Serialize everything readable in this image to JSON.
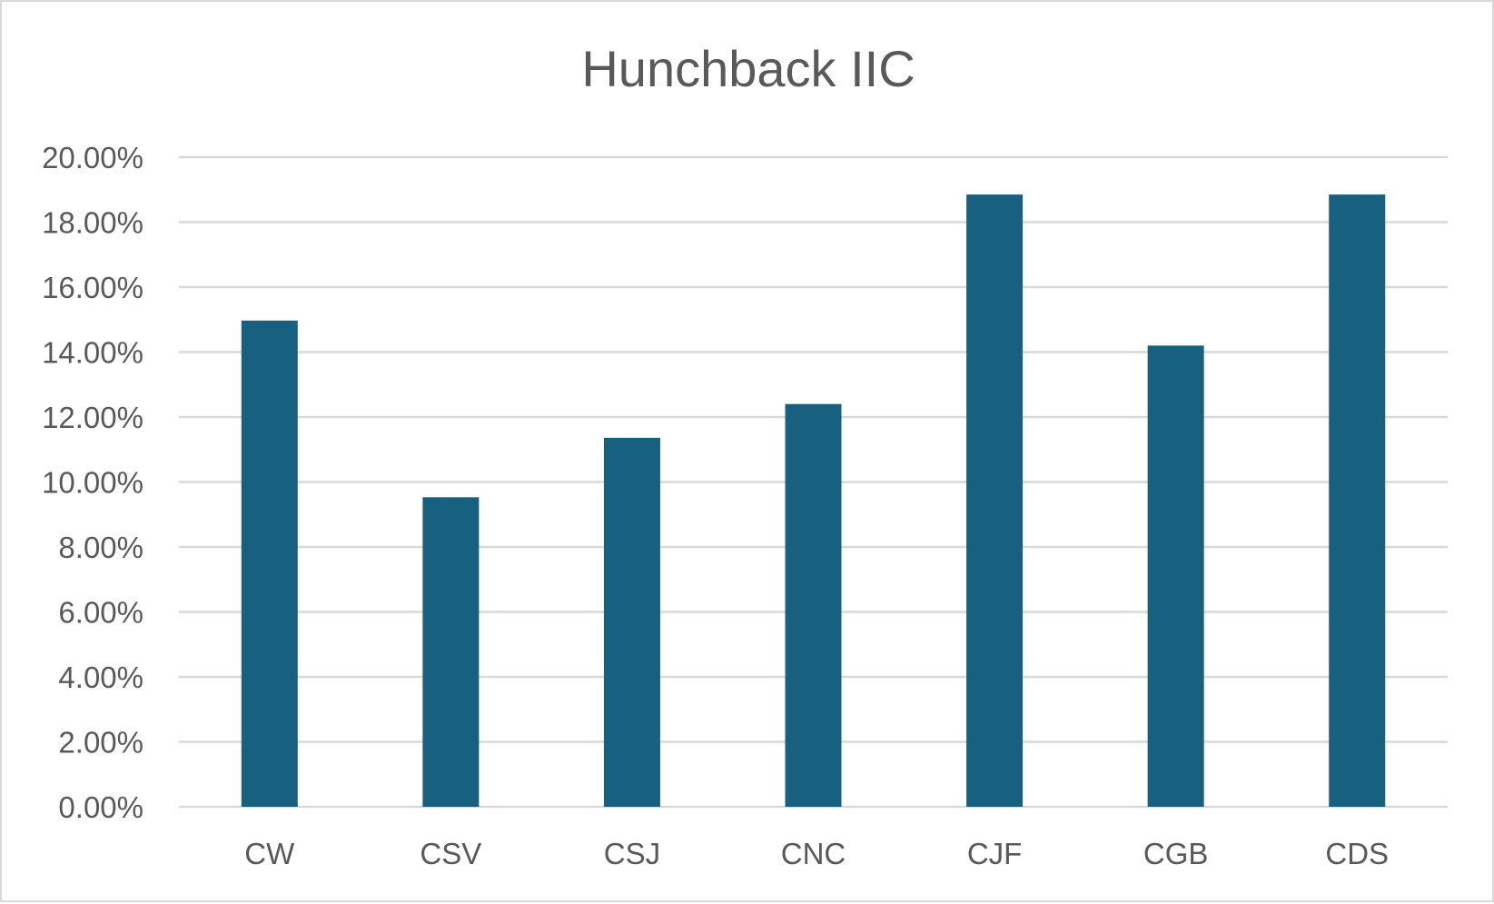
{
  "chart_data": {
    "type": "bar",
    "title": "Hunchback IIC",
    "categories": [
      "CW",
      "CSV",
      "CSJ",
      "CNC",
      "CJF",
      "CGB",
      "CDS"
    ],
    "values": [
      0.1497,
      0.0953,
      0.1136,
      0.124,
      0.1885,
      0.142,
      0.1885
    ],
    "ylim": [
      0,
      0.2
    ],
    "y_ticks": [
      0,
      0.02,
      0.04,
      0.06,
      0.08,
      0.1,
      0.12,
      0.14,
      0.16,
      0.18,
      0.2
    ],
    "y_tick_labels": [
      "0.00%",
      "2.00%",
      "4.00%",
      "6.00%",
      "8.00%",
      "10.00%",
      "12.00%",
      "14.00%",
      "16.00%",
      "18.00%",
      "20.00%"
    ],
    "xlabel": "",
    "ylabel": "",
    "grid": true,
    "legend": "none",
    "bar_color": "#17607f"
  }
}
